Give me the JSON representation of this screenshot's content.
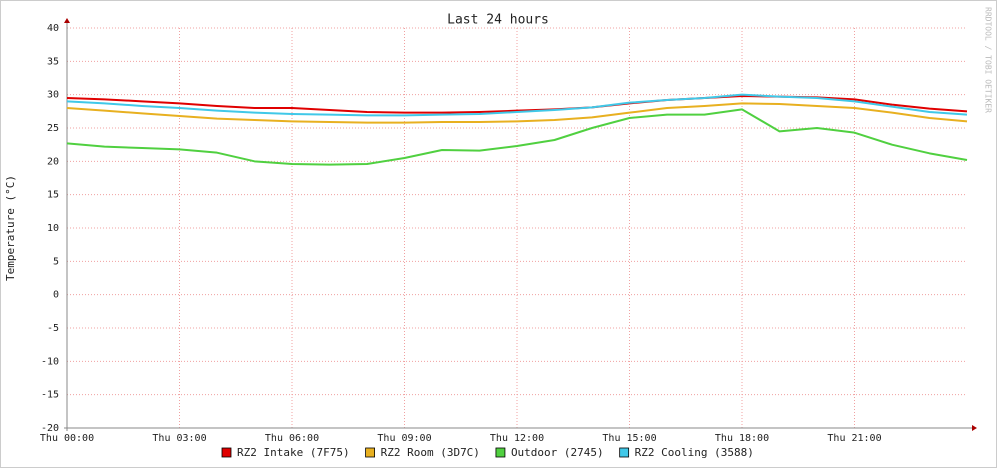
{
  "chart_data": {
    "type": "line",
    "title": "Last 24 hours",
    "y_label": "Temperature (°C)",
    "watermark": "RRDTOOL / TOBI OETIKER",
    "x": [
      0,
      1,
      2,
      3,
      4,
      5,
      6,
      7,
      8,
      9,
      10,
      11,
      12,
      13,
      14,
      15,
      16,
      17,
      18,
      19,
      20,
      21,
      22,
      23,
      24
    ],
    "xlim": [
      0,
      24
    ],
    "xticks": [
      {
        "value": 0,
        "label": "Thu 00:00"
      },
      {
        "value": 3,
        "label": "Thu 03:00"
      },
      {
        "value": 6,
        "label": "Thu 06:00"
      },
      {
        "value": 9,
        "label": "Thu 09:00"
      },
      {
        "value": 12,
        "label": "Thu 12:00"
      },
      {
        "value": 15,
        "label": "Thu 15:00"
      },
      {
        "value": 18,
        "label": "Thu 18:00"
      },
      {
        "value": 21,
        "label": "Thu 21:00"
      }
    ],
    "ylim": [
      -20,
      40
    ],
    "yticks": [
      -20,
      -15,
      -10,
      -5,
      0,
      5,
      10,
      15,
      20,
      25,
      30,
      35,
      40
    ],
    "grid": true,
    "series": [
      {
        "name": "RZ2 Intake (7F75)",
        "color": "#e00000",
        "values": [
          29.5,
          29.3,
          29,
          28.7,
          28.3,
          28,
          28,
          27.7,
          27.4,
          27.3,
          27.3,
          27.4,
          27.6,
          27.8,
          28.1,
          28.7,
          29.2,
          29.5,
          29.8,
          29.7,
          29.6,
          29.3,
          28.5,
          27.9,
          27.5
        ]
      },
      {
        "name": "RZ2 Room (3D7C)",
        "color": "#e8b020",
        "values": [
          28,
          27.6,
          27.2,
          26.8,
          26.4,
          26.2,
          26,
          25.9,
          25.8,
          25.8,
          25.9,
          25.9,
          26,
          26.2,
          26.6,
          27.3,
          28,
          28.3,
          28.7,
          28.6,
          28.3,
          28,
          27.3,
          26.5,
          26
        ]
      },
      {
        "name": "Outdoor (2745)",
        "color": "#50d040",
        "values": [
          22.7,
          22.2,
          22,
          21.8,
          21.3,
          20,
          19.6,
          19.5,
          19.6,
          20.5,
          21.7,
          21.6,
          22.3,
          23.2,
          25,
          26.5,
          27,
          27,
          27.8,
          24.5,
          25,
          24.3,
          22.5,
          21.2,
          20.2
        ]
      },
      {
        "name": "RZ2 Cooling (3588)",
        "color": "#40c8e8",
        "values": [
          29,
          28.7,
          28.3,
          28,
          27.6,
          27.3,
          27.1,
          27,
          26.9,
          26.9,
          27,
          27.1,
          27.4,
          27.7,
          28.1,
          28.8,
          29.2,
          29.5,
          30,
          29.7,
          29.5,
          29,
          28.2,
          27.4,
          27
        ]
      }
    ]
  }
}
